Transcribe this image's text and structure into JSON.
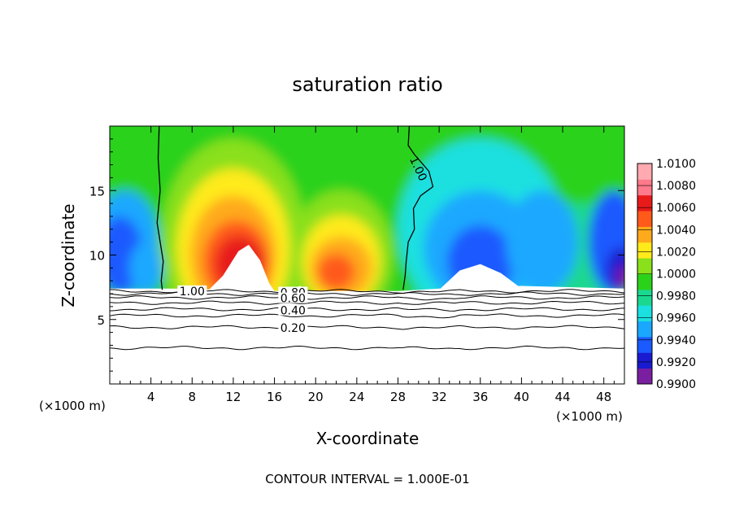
{
  "chart_data": {
    "type": "heatmap",
    "title": "saturation ratio",
    "xlabel": "X-coordinate",
    "ylabel": "Z-coordinate",
    "x_unit_label": "(×1000 m)",
    "footer": "CONTOUR INTERVAL = 1.000E-01",
    "xlim": [
      0,
      50
    ],
    "ylim": [
      0,
      20
    ],
    "x_ticks": [
      4,
      8,
      12,
      16,
      20,
      24,
      28,
      32,
      36,
      40,
      44,
      48
    ],
    "y_ticks": [
      5,
      10,
      15
    ],
    "colorbar": {
      "levels": [
        "0.9900",
        "0.9920",
        "0.9940",
        "0.9960",
        "0.9980",
        "1.0000",
        "1.0020",
        "1.0040",
        "1.0060",
        "1.0080",
        "1.0100"
      ],
      "colors": [
        "#7a1fa0",
        "#1a1ad0",
        "#1a5aff",
        "#1aa8ff",
        "#1ae0e0",
        "#1ad890",
        "#2ad21a",
        "#8ae01a",
        "#ffea1a",
        "#ffaa1a",
        "#ff5a1a",
        "#e81a1a",
        "#ff7a8a",
        "#ffaab0"
      ]
    },
    "contour_labels": [
      {
        "text": "1.00",
        "x": 8.0,
        "z": 7.2
      },
      {
        "text": "0.80",
        "x": 17.8,
        "z": 7.1
      },
      {
        "text": "0.60",
        "x": 17.8,
        "z": 6.65
      },
      {
        "text": "0.40",
        "x": 17.8,
        "z": 5.7
      },
      {
        "text": "0.20",
        "x": 17.8,
        "z": 4.35
      },
      {
        "text": "1.00",
        "x": 30.0,
        "z": 16.7
      }
    ],
    "contour_lines_z": [
      7.2,
      7.0,
      6.7,
      6.3,
      5.8,
      5.3,
      4.4,
      2.8
    ]
  }
}
